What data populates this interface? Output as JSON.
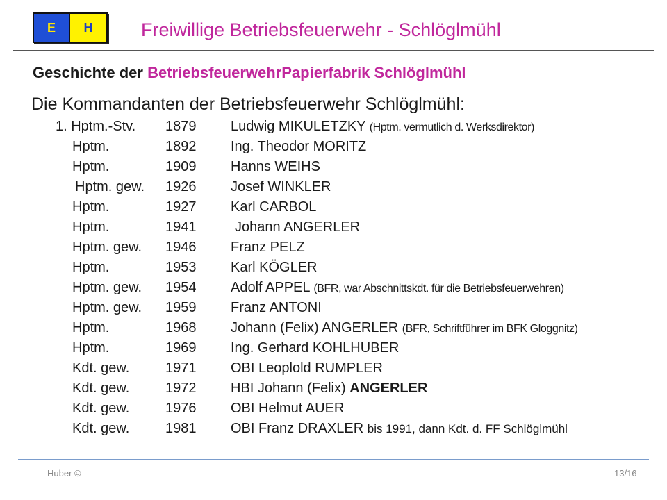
{
  "logo": {
    "letter_left": "E",
    "letter_right": "H"
  },
  "header": {
    "title": "Freiwillige Betriebsfeuerwehr - Schlöglmühl"
  },
  "heading": {
    "prefix": "Geschichte der ",
    "accent": "BetriebsfeuerwehrPapierfabrik  Schlöglmühl"
  },
  "subheading": "Die Kommandanten der Betriebsfeuerwehr Schlöglmühl:",
  "commanders": [
    {
      "rank": "1. Hptm.-Stv.",
      "year": "1879",
      "name": "Ludwig MIKULETZKY",
      "note": "(Hptm. vermutlich d. Werksdirektor)"
    },
    {
      "rank": "Hptm.",
      "year": "1892",
      "name": "Ing. Theodor MORITZ",
      "note": ""
    },
    {
      "rank": "Hptm.",
      "year": "1909",
      "name": "Hanns WEIHS",
      "note": ""
    },
    {
      "rank": "Hptm. gew.",
      "year": "1926",
      "name": "Josef WINKLER",
      "note": ""
    },
    {
      "rank": "Hptm.",
      "year": "1927",
      "name": "Karl CARBOL",
      "note": ""
    },
    {
      "rank": "Hptm.",
      "year": "1941",
      "name": "Johann ANGERLER",
      "note": ""
    },
    {
      "rank": "Hptm. gew.",
      "year": "1946",
      "name": "Franz PELZ",
      "note": ""
    },
    {
      "rank": "Hptm.",
      "year": "1953",
      "name": "Karl KÖGLER",
      "note": ""
    },
    {
      "rank": "Hptm. gew.",
      "year": "1954",
      "name": "Adolf APPEL",
      "note": "(BFR, war Abschnittskdt. für die Betriebsfeuerwehren)"
    },
    {
      "rank": "Hptm. gew.",
      "year": "1959",
      "name": "Franz ANTONI",
      "note": ""
    },
    {
      "rank": "Hptm.",
      "year": "1968",
      "name": "Johann (Felix) ANGERLER",
      "note": "(BFR, Schriftführer im BFK Gloggnitz)"
    },
    {
      "rank": "Hptm.",
      "year": "1969",
      "name": "Ing. Gerhard KOHLHUBER",
      "note": ""
    },
    {
      "rank": "Kdt. gew.",
      "year": "1971",
      "name": "OBI Leoplold RUMPLER",
      "note": ""
    },
    {
      "rank": "Kdt. gew.",
      "year": "1972",
      "name": "HBI Johann (Felix)",
      "bold": "ANGERLER",
      "note": ""
    },
    {
      "rank": "Kdt. gew.",
      "year": "1976",
      "name": "OBI Helmut AUER",
      "note": ""
    },
    {
      "rank": "Kdt. gew.",
      "year": "1981",
      "name": "OBI  Franz DRAXLER",
      "note": "bis 1991, dann Kdt. d. FF Schlöglmühl"
    }
  ],
  "footer": {
    "author": "Huber  ©",
    "page": "13/16"
  },
  "colors": {
    "accent": "#c0279c",
    "logo_blue": "#1f4fd6",
    "logo_yellow": "#fff200"
  }
}
